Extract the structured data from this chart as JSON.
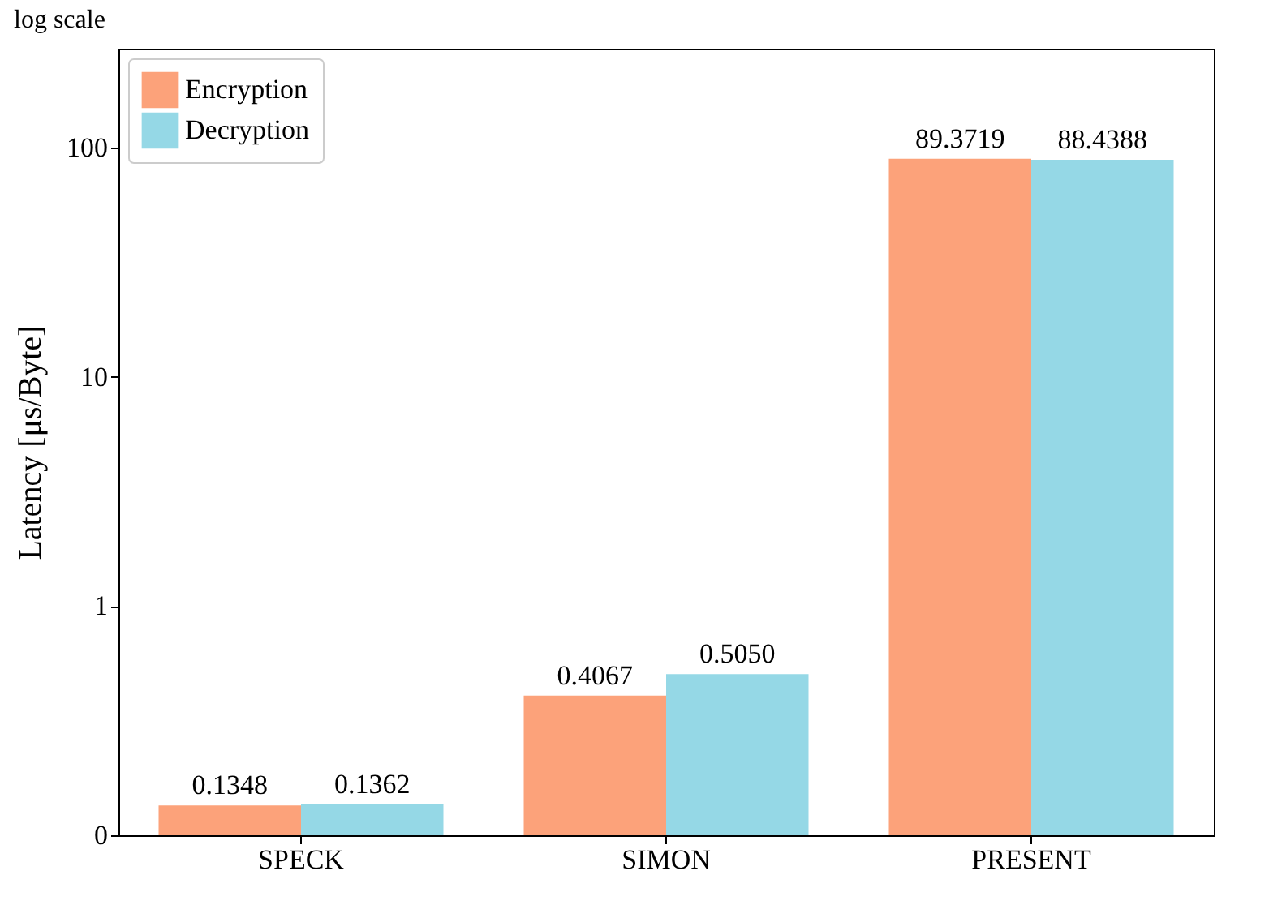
{
  "chart_data": {
    "type": "bar",
    "ylabel": "Latency [μs/Byte]",
    "annotations": [
      "log scale"
    ],
    "categories": [
      "SPECK",
      "SIMON",
      "PRESENT"
    ],
    "series": [
      {
        "name": "Encryption",
        "color": "#fca27a",
        "values": [
          0.1348,
          0.4067,
          89.3719
        ],
        "value_labels": [
          "0.1348",
          "0.4067",
          "89.3719"
        ]
      },
      {
        "name": "Decryption",
        "color": "#95d8e6",
        "values": [
          0.1362,
          0.505,
          88.4388
        ],
        "value_labels": [
          "0.1362",
          "0.5050",
          "88.4388"
        ]
      }
    ],
    "log": true,
    "ylim": [
      0.1,
      270
    ],
    "yticks": [
      {
        "value": 0.1,
        "label": "0"
      },
      1,
      10,
      100
    ],
    "grid": false,
    "legend": "top left"
  }
}
